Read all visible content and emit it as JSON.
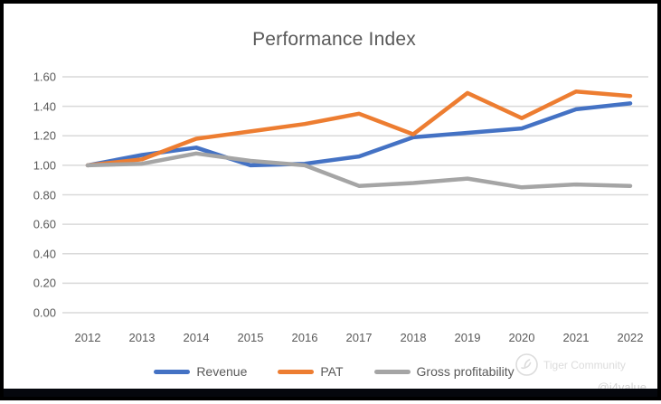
{
  "chart": {
    "title": "Performance Index",
    "watermark": {
      "brand": "Tiger Community",
      "handle": "@i4value"
    }
  },
  "chart_data": {
    "type": "line",
    "title": "Performance Index",
    "categories": [
      "2012",
      "2013",
      "2014",
      "2015",
      "2016",
      "2017",
      "2018",
      "2019",
      "2020",
      "2021",
      "2022"
    ],
    "series": [
      {
        "name": "Revenue",
        "color": "#4472C4",
        "values": [
          1.0,
          1.07,
          1.12,
          1.0,
          1.01,
          1.06,
          1.19,
          1.22,
          1.25,
          1.38,
          1.42
        ]
      },
      {
        "name": "PAT",
        "color": "#ED7D31",
        "values": [
          1.0,
          1.04,
          1.18,
          1.23,
          1.28,
          1.35,
          1.21,
          1.49,
          1.32,
          1.5,
          1.47
        ]
      },
      {
        "name": "Gross profitability",
        "color": "#A5A5A5",
        "values": [
          1.0,
          1.01,
          1.08,
          1.03,
          1.0,
          0.86,
          0.88,
          0.91,
          0.85,
          0.87,
          0.86
        ]
      }
    ],
    "ylim": [
      0.0,
      1.6
    ],
    "ytick_step": 0.2,
    "ytick_labels": [
      "0.00",
      "0.20",
      "0.40",
      "0.60",
      "0.80",
      "1.00",
      "1.20",
      "1.40",
      "1.60"
    ],
    "grid": true,
    "gridline_color": "#D9D9D9",
    "legend_position": "bottom"
  }
}
